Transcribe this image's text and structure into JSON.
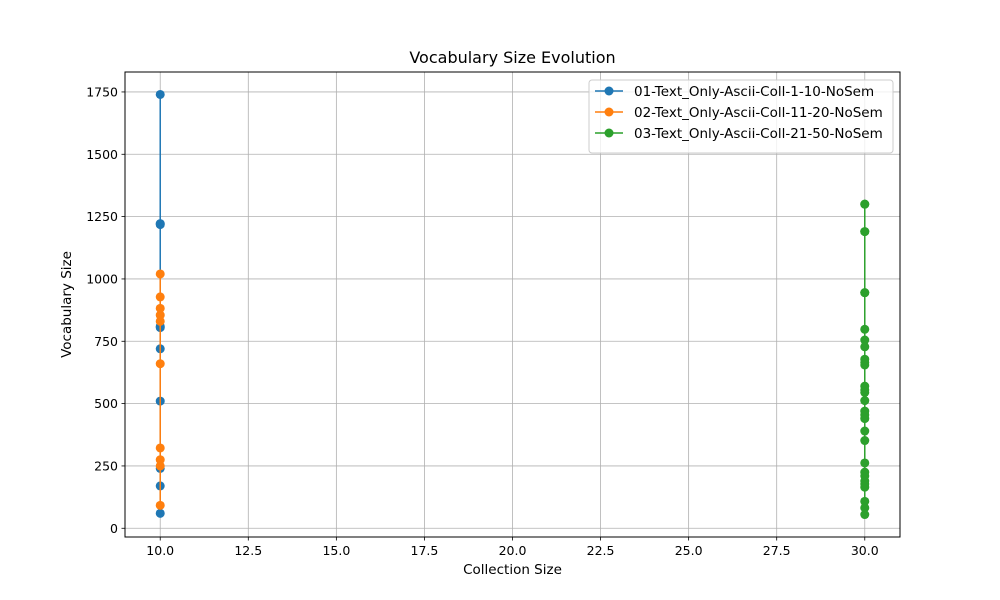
{
  "chart_data": {
    "type": "line",
    "title": "Vocabulary Size Evolution",
    "xlabel": "Collection Size",
    "ylabel": "Vocabulary Size",
    "xlim": [
      9.0,
      31.0
    ],
    "ylim": [
      -35,
      1830
    ],
    "xticks": [
      10.0,
      12.5,
      15.0,
      17.5,
      20.0,
      22.5,
      25.0,
      27.5,
      30.0
    ],
    "xtick_labels": [
      "10.0",
      "12.5",
      "15.0",
      "17.5",
      "20.0",
      "22.5",
      "25.0",
      "27.5",
      "30.0"
    ],
    "yticks": [
      0,
      250,
      500,
      750,
      1000,
      1250,
      1500,
      1750
    ],
    "ytick_labels": [
      "0",
      "250",
      "500",
      "750",
      "1000",
      "1250",
      "1500",
      "1750"
    ],
    "grid": true,
    "legend": "upper right",
    "series": [
      {
        "name": "01-Text_Only-Ascii-Coll-1-10-NoSem",
        "color": "#1f77b4",
        "x": [
          10,
          10,
          10,
          10,
          10,
          10,
          10,
          10,
          10,
          10
        ],
        "y": [
          60,
          170,
          240,
          510,
          720,
          805,
          810,
          1218,
          1222,
          1740
        ]
      },
      {
        "name": "02-Text_Only-Ascii-Coll-11-20-NoSem",
        "color": "#ff7f0e",
        "x": [
          10,
          10,
          10,
          10,
          10,
          10,
          10,
          10,
          10,
          10
        ],
        "y": [
          92,
          250,
          275,
          322,
          660,
          830,
          855,
          882,
          928,
          1020
        ]
      },
      {
        "name": "03-Text_Only-Ascii-Coll-21-50-NoSem",
        "color": "#2ca02c",
        "x": [
          30,
          30,
          30,
          30,
          30,
          30,
          30,
          30,
          30,
          30,
          30,
          30,
          30,
          30,
          30,
          30,
          30,
          30,
          30,
          30,
          30,
          30,
          30,
          30,
          30,
          30,
          30,
          30,
          30,
          30
        ],
        "y": [
          55,
          82,
          108,
          165,
          178,
          190,
          210,
          225,
          262,
          352,
          390,
          440,
          455,
          470,
          512,
          545,
          555,
          570,
          655,
          665,
          678,
          728,
          755,
          798,
          945,
          1190,
          1300,
          1300,
          1190,
          945
        ]
      }
    ]
  }
}
